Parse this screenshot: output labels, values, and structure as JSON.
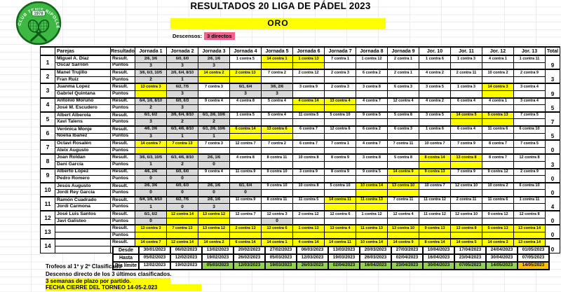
{
  "logo": {
    "text": "CLUB TENIS RIPOLLET",
    "year": "1978"
  },
  "header": {
    "title": "RESULTADOS 20 LIGA DE PÁDEL 2023",
    "category": "ORO",
    "descensos_label": "Descensos:",
    "descensos_value": "3 directos"
  },
  "colors": {
    "yellow": "#ffff00",
    "pink": "#f06292",
    "green": "#92d050",
    "orange": "#ffc000",
    "gray": "#d9d9d9",
    "logo_green": "#3cb843"
  },
  "table": {
    "columns": {
      "parejas": "Parejas",
      "resultado": "Resultado",
      "jornadas": [
        "Jornada 1",
        "Jornada 2",
        "Jornada 3",
        "Jornada 4",
        "Jornada 5",
        "Jornada 6",
        "Jornada 7",
        "Jornada 8",
        "Jornada 9",
        "Jor. 10",
        "Jor. 11",
        "Jor. 12",
        "Jor. 13"
      ],
      "total": "Total"
    },
    "row_labels": {
      "result": "Result.",
      "puntos": "Puntos"
    },
    "teams": [
      {
        "num": "1",
        "player1": "Miguel A. Díaz",
        "player2": "Oscar Sarrión",
        "total": "9",
        "results": [
          "2/6, 3/6",
          "6/0, 6/0",
          "2/6, 1/6",
          "1 contra 5",
          "14 contra 1",
          "1 contra 13",
          "7 contra 1",
          "1 contra 12",
          "2 contra 1",
          "1 contra 6",
          "1 contra 3",
          "4 contra 1",
          "1 contra 11"
        ],
        "result_styles": "gggwyywwwwwww",
        "puntos": [
          "3",
          "3",
          "3",
          "",
          "",
          "",
          "",
          "",
          "",
          "",
          "",
          "",
          ""
        ],
        "puntos_styles": "gggwyywwwwwww"
      },
      {
        "num": "2",
        "player1": "Manel Trujillo",
        "player2": "Fran Ruiz",
        "total": "3",
        "results": [
          "3/6, 6/3, 10/5",
          "2/6, 6/4, 8/10",
          "14 contra 2",
          "2 contra 13",
          "7 contra 2",
          "2 contra 12",
          "2 contra 3",
          "6 contra 2",
          "2 contra 1",
          "4 contra 2",
          "2 contra 11",
          "10 contra 2",
          "2 contra 9"
        ],
        "result_styles": "ggyywwwwwwwww",
        "puntos": [
          "2",
          "1",
          "",
          "",
          "",
          "",
          "",
          "",
          "",
          "",
          "",
          "",
          ""
        ],
        "puntos_styles": "ggyywwwwwwwww"
      },
      {
        "num": "3",
        "player1": "Juanma Lopez",
        "player2": "Gabriel Quintana",
        "total": "9",
        "results": [
          "13 contra 3",
          "6/2, 7/5",
          "7 contra 3",
          "6/1, 6/4",
          "3/6, 2/6",
          "3 contra 9",
          "2 contra 3",
          "3 contra 8",
          "6 contra 3",
          "3 contra 5",
          "1 contra 3",
          "14 contra 3",
          "3 contra 4"
        ],
        "result_styles": "ygwggwwwwwwyw",
        "puntos": [
          "",
          "3",
          "",
          "3",
          "3",
          "",
          "",
          "",
          "",
          "",
          "",
          "",
          ""
        ],
        "puntos_styles": "ygwggwwwwwwyw"
      },
      {
        "num": "4",
        "player1": "Antonio Moruno",
        "player2": "José M. Escudero",
        "total": "5",
        "results": [
          "6/4, 1/6, 8/10",
          "6/0, 6/3",
          "9 contra 4",
          "4 contra 8",
          "5 contra 4",
          "4 contra 14",
          "13 contra 4",
          "4 contra 7",
          "12 contra 4",
          "4 contra 2",
          "6 contra 4",
          "4 contra 1",
          "3 contra 4"
        ],
        "result_styles": "ggwwwyywwwwww",
        "puntos": [
          "2",
          "3",
          "",
          "",
          "",
          "",
          "",
          "",
          "",
          "",
          "",
          "",
          ""
        ],
        "puntos_styles": "ggwwwyywwwwww"
      },
      {
        "num": "5",
        "player1": "Albert Alberola",
        "player2": "Xavi Talens",
        "total": "7",
        "results": [
          "6/1, 6/2",
          "2/6, 6/4, 8/10",
          "6/1, 2/6, 10/6",
          "1 contra 5",
          "5 contra 4",
          "11 contra 5",
          "5 contra 10",
          "9 contra 5",
          "5 contra 8",
          "3 contra 5",
          "14 contra 5",
          "5 contra 13",
          "7 contra 5"
        ],
        "result_styles": "gggwwwwwwwyyw",
        "puntos": [
          "3",
          "2",
          "2",
          "",
          "",
          "",
          "",
          "",
          "",
          "",
          "",
          "",
          ""
        ],
        "puntos_styles": "gggwwwwwwwyyw"
      },
      {
        "num": "6",
        "player1": "Verónica Monje",
        "player2": "Noelia Ibañez",
        "total": "5",
        "results": [
          "4/6, 2/6",
          "6/3, 4/6, 8/10",
          "6/1, 2/6, 10/6",
          "6 contra 14",
          "13 contra 6",
          "6 contra 7",
          "12 contra 6",
          "6 contra 2",
          "6 contra 3",
          "1 contra 6",
          "6 contra 4",
          "11 contra 6",
          "6 contra 10"
        ],
        "result_styles": "gggyywwwwwwww",
        "puntos": [
          "3",
          "1",
          "1",
          "",
          "",
          "",
          "",
          "",
          "",
          "",
          "",
          "",
          ""
        ],
        "puntos_styles": "gggyywwwwwwww"
      },
      {
        "num": "7",
        "player1": "Octavi Rosalén",
        "player2": "Aleix Augusto",
        "total": "0",
        "results": [
          "14 contra 7",
          "7 contra 13",
          "7 contra 3",
          "12 contra 7",
          "7 contra 2",
          "6 contra 7",
          "7 contra 1",
          "4 contra 7",
          "7 contra 11",
          "10 contra 7",
          "7 contra 9",
          "8 contra 7",
          "7 contra 5"
        ],
        "result_styles": "yywwwwwwwwwww",
        "puntos": [
          "",
          "",
          "",
          "",
          "",
          "",
          "",
          "",
          "",
          "",
          "",
          "",
          ""
        ],
        "puntos_styles": "yywwwwwwwwwww"
      },
      {
        "num": "8",
        "player1": "Joan Roldan",
        "player2": "Dani García",
        "total": "3",
        "results": [
          "3/6, 6/3, 10/5",
          "6/3, 4/6, 8/10",
          "2/6, 1/6",
          "4 contra 8",
          "8 contra 11",
          "10 contra 8",
          "8 contra 9",
          "3 contra 8",
          "5 contra 8",
          "8 contra 14",
          "13 contra 8",
          "8 contra 7",
          "12 contra 8"
        ],
        "result_styles": "gggwwwwwwyyww",
        "puntos": [
          "1",
          "2",
          "0",
          "",
          "",
          "",
          "",
          "",
          "",
          "",
          "",
          "",
          ""
        ],
        "puntos_styles": "gggwwwwwwyyww"
      },
      {
        "num": "9",
        "player1": "Alberto López",
        "player2": "Pedro Romero",
        "total": "0",
        "results": [
          "4/6, 2/6",
          "6/0, 6/0",
          "9 contra 4",
          "11 contra 9",
          "9 contra 10",
          "3 contra 9",
          "8 contra 9",
          "9 contra 5",
          "14 contra 9",
          "9 contra 13",
          "7 contra 9",
          "9 contra 12",
          "2 contra 9"
        ],
        "result_styles": "ggwwwwwwyywww",
        "puntos": [
          "0",
          "0",
          "",
          "",
          "",
          "",
          "",
          "",
          "",
          "",
          "",
          "",
          ""
        ],
        "puntos_styles": "ggwwwwwwyywww"
      },
      {
        "num": "10",
        "player1": "Jesús Augusto",
        "player2": "Jordi Rey Garcia",
        "total": "0",
        "results": [
          "2/6, 3/6",
          "6/0, 6/3",
          "2/6, 1/6",
          "6/1, 6/4",
          "9 contra 10",
          "10 contra 8",
          "5 contra 10",
          "10 contra 14",
          "13 contra 10",
          "10 contra 7",
          "12 contra 10",
          "10 contra 2",
          "6 contra 10"
        ],
        "result_styles": "ggggwwwyywwww",
        "puntos": [
          "0",
          "0",
          "0",
          "0",
          "",
          "",
          "",
          "",
          "",
          "",
          "",
          "",
          ""
        ],
        "puntos_styles": "ggggwwwyywwww"
      },
      {
        "num": "11",
        "player1": "Ramón Cuadrado",
        "player2": "Jordi Carmona",
        "total": "4",
        "results": [
          "6/4, 1/6, 8/10",
          "6/2, 7/5",
          "2/6, 1/6",
          "11 contra 9",
          "8 contra 11",
          "11 contra 5",
          "14 contra 11",
          "11 contra 13",
          "7 contra 11",
          "11 contra 12",
          "2 contra 11",
          "11 contra 6",
          "1 contra 11"
        ],
        "result_styles": "gggwwwyywwwww",
        "puntos": [
          "1",
          "0",
          "3",
          "",
          "",
          "",
          "",
          "",
          "",
          "",
          "",
          "",
          ""
        ],
        "puntos_styles": "gggwwwyywwwww"
      },
      {
        "num": "12",
        "player1": "José Luis Santos",
        "player2": "Javi Galisteo",
        "total": "0",
        "results": [
          "6/1, 6/2",
          "12 contra 14",
          "13 contra 12",
          "12 contra 7",
          "12 contra 3",
          "2 contra 12",
          "12 contra 6",
          "1 contra 12",
          "12 contra 4",
          "11 contra 12",
          "12 contra 10",
          "9 contra 12",
          "12 contra 8"
        ],
        "result_styles": "gyywwwwwwwwww",
        "puntos": [
          "0",
          "",
          "",
          "",
          "0",
          "",
          "",
          "",
          "",
          "",
          "",
          "",
          ""
        ],
        "puntos_styles": "gyywgwwwwwwww"
      },
      {
        "num": "13",
        "player1": "",
        "player2": "",
        "total": "0",
        "results": [
          "13 contra 3",
          "7 contra 13",
          "13 contra 12",
          "2 contra 13",
          "13 contra 6",
          "1 contra 13",
          "13 contra 4",
          "11 contra 13",
          "13 contra 10",
          "9 contra 13",
          "13 contra 8",
          "5 contra 13",
          "13 contra 14"
        ],
        "result_styles": "yyyyyyyyyyyyy",
        "puntos": [
          "",
          "",
          "",
          "",
          "",
          "",
          "",
          "",
          "",
          "",
          "",
          "",
          ""
        ],
        "puntos_styles": "yyyyyyyyyyyyy"
      },
      {
        "num": "14",
        "player1": "",
        "player2": "",
        "total": "0",
        "results": [
          "14 contra 7",
          "12 contra 14",
          "14 contra 2",
          "6 contra 14",
          "14 contra 1",
          "4 contra 14",
          "14 contra 11",
          "10 contra 14",
          "14 contra 9",
          "8 contra 14",
          "14 contra 5",
          "14 contra 3",
          "13 contra 14"
        ],
        "result_styles": "yyyyyyyyyyyyy",
        "puntos": [
          "",
          "",
          "",
          "",
          "",
          "",
          "",
          "",
          "",
          "",
          "",
          "",
          ""
        ],
        "puntos_styles": "yyyyyyyyyyyyy"
      }
    ]
  },
  "schedule": {
    "labels": {
      "desde": "Desde",
      "hasta": "Hasta",
      "limite": "Día límite"
    },
    "desde": [
      "30/01/2023",
      "06/02/2023",
      "13/02/2023",
      "20/02/2023",
      "27/02/2023",
      "06/03/2023",
      "13/03/2023",
      "20/03/2023",
      "27/03/2023",
      "10/04/2023",
      "17/04/2023",
      "24/04/2023",
      "01/05/2023"
    ],
    "hasta": [
      "05/02/2023",
      "12/02/2023",
      "19/02/2023",
      "26/02/2023",
      "05/03/2023",
      "12/03/2023",
      "19/03/2023",
      "26/03/2023",
      "02/04/2023",
      "16/04/2023",
      "23/04/2023",
      "30/04/2023",
      "07/05/2023"
    ],
    "limite": [
      "12/02/2023",
      "19/02/2023",
      "05/03/2023",
      "12/03/2023",
      "19/03/2023",
      "26/03/2023",
      "02/04/2023",
      "16/04/2023",
      "23/04/2023",
      "30/04/2023",
      "07/05/2023",
      "14/05/2023",
      "14/05/2023"
    ],
    "limite_styles": [
      "w",
      "w",
      "g",
      "g",
      "g",
      "g",
      "g",
      "g",
      "g",
      "g",
      "g",
      "g",
      "o"
    ]
  },
  "footer": {
    "trofeos": "Trofeos al 1º y 2º Clasificado",
    "descenso": "Descenso directo de los 3 últimos clasificados.",
    "plazo": "3 semanas de plazo por partido.",
    "cierre": "FECHA CIERRE DEL TORNEO 14-05-2.023"
  }
}
